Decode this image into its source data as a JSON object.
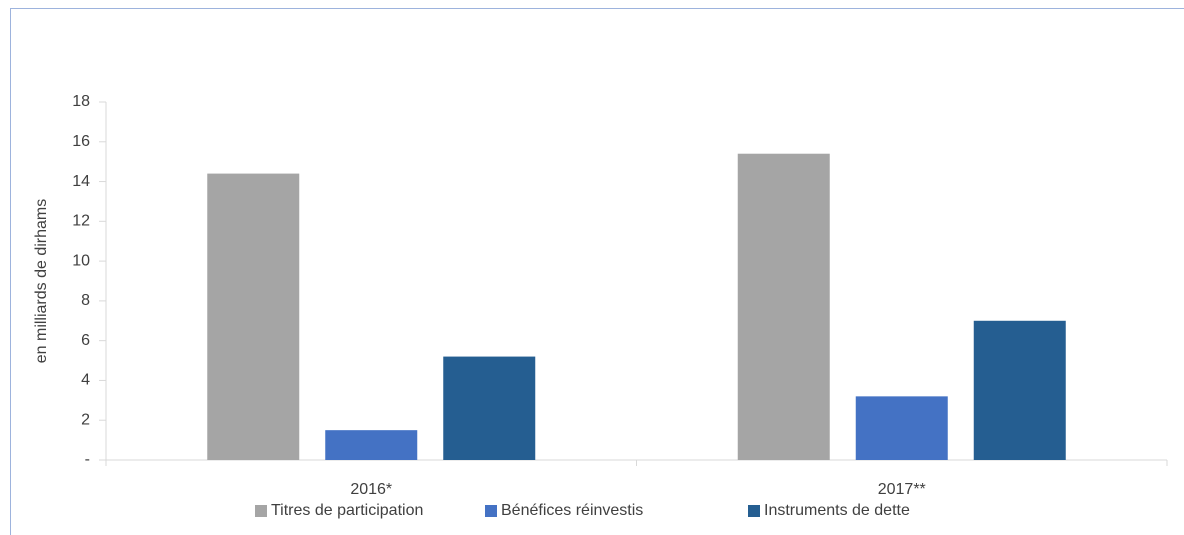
{
  "chart_data": {
    "type": "bar",
    "y_label": "en milliards de dirhams",
    "categories": [
      "2016*",
      "2017**"
    ],
    "series": [
      {
        "name": "Titres de participation",
        "color": "#a5a5a5",
        "values": [
          14.4,
          15.4
        ]
      },
      {
        "name": "Bénéfices réinvestis",
        "color": "#4472c4",
        "values": [
          1.5,
          3.2
        ]
      },
      {
        "name": "Instruments de dette",
        "color": "#255e91",
        "values": [
          5.2,
          7.0
        ]
      }
    ],
    "ylim": [
      0,
      18
    ],
    "yticks": [
      {
        "value": 0,
        "label": "-"
      },
      2,
      4,
      6,
      8,
      10,
      12,
      14,
      16,
      18
    ],
    "legend": "bottom"
  }
}
